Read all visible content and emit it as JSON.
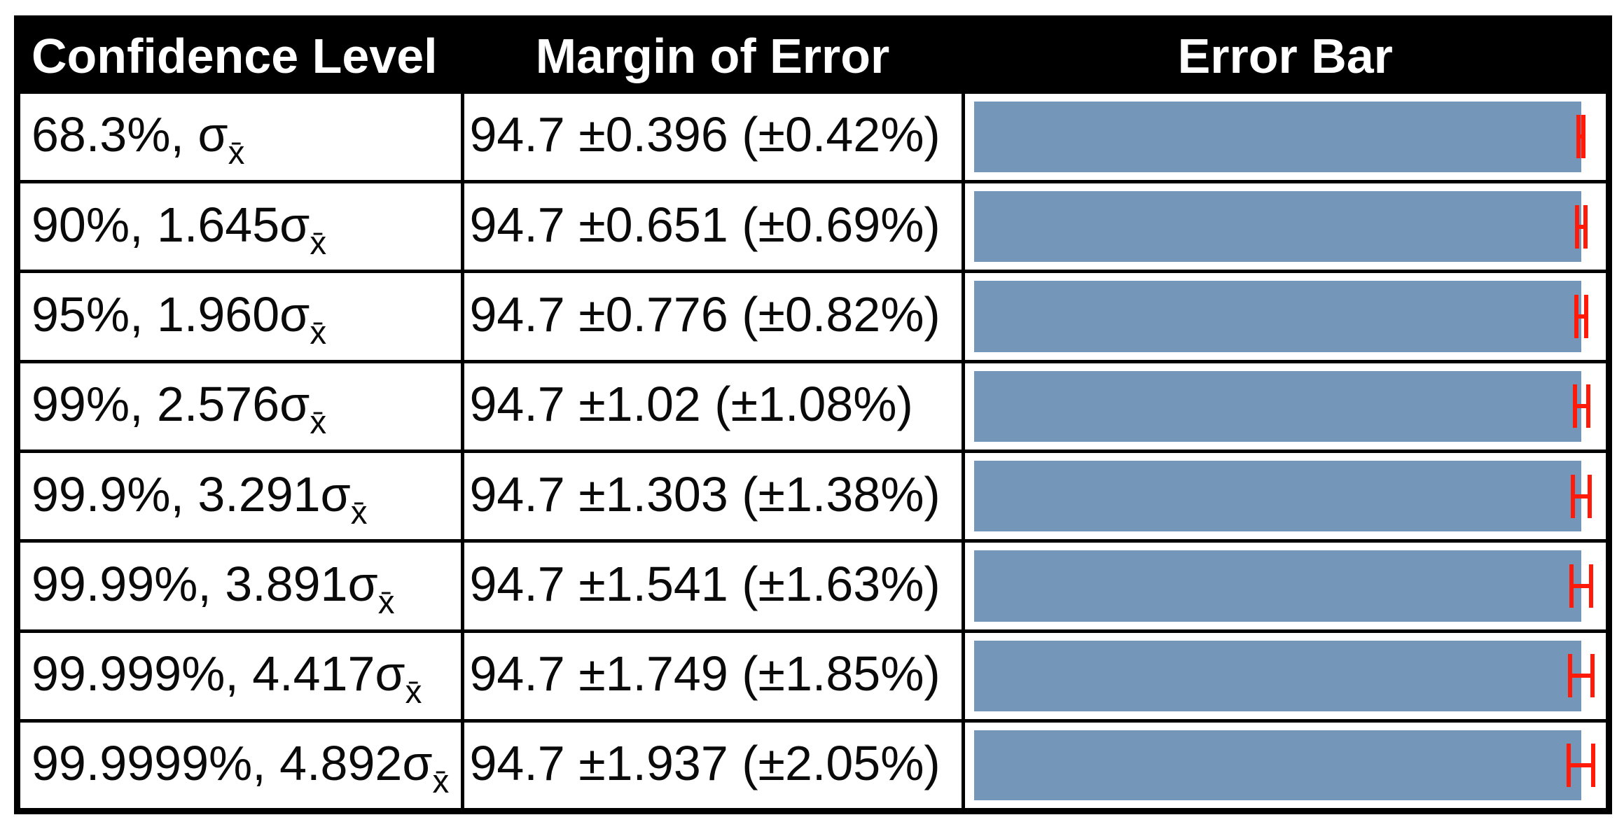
{
  "table": {
    "headers": [
      "Confidence Level",
      "Margin of Error",
      "Error Bar"
    ],
    "rows": [
      {
        "confidence": "68.3%, σ",
        "sigma_sub": "x̄",
        "margin": "94.7 ±0.396 (±0.42%)"
      },
      {
        "confidence": "90%, 1.645σ",
        "sigma_sub": "x̄",
        "margin": "94.7 ±0.651 (±0.69%)"
      },
      {
        "confidence": "95%, 1.960σ",
        "sigma_sub": "x̄",
        "margin": "94.7 ±0.776 (±0.82%)"
      },
      {
        "confidence": "99%, 2.576σ",
        "sigma_sub": "x̄",
        "margin": "94.7 ±1.02 (±1.08%)"
      },
      {
        "confidence": "99.9%, 3.291σ",
        "sigma_sub": "x̄",
        "margin": "94.7 ±1.303 (±1.38%)"
      },
      {
        "confidence": "99.99%, 3.891σ",
        "sigma_sub": "x̄",
        "margin": "94.7 ±1.541 (±1.63%)"
      },
      {
        "confidence": "99.999%, 4.417σ",
        "sigma_sub": "x̄",
        "margin": "94.7 ±1.749 (±1.85%)"
      },
      {
        "confidence": "99.9999%, 4.892σ",
        "sigma_sub": "x̄",
        "margin": "94.7 ±1.937 (±2.05%)"
      }
    ]
  },
  "chart_data": {
    "type": "bar",
    "orientation": "horizontal",
    "title": "Error Bar",
    "categories": [
      "68.3%, σx̄",
      "90%, 1.645σx̄",
      "95%, 1.960σx̄",
      "99%, 2.576σx̄",
      "99.9%, 3.291σx̄",
      "99.99%, 3.891σx̄",
      "99.999%, 4.417σx̄",
      "99.9999%, 4.892σx̄"
    ],
    "values": [
      94.7,
      94.7,
      94.7,
      94.7,
      94.7,
      94.7,
      94.7,
      94.7
    ],
    "error_margins": [
      0.396,
      0.651,
      0.776,
      1.02,
      1.303,
      1.541,
      1.749,
      1.937
    ],
    "error_margin_percent": [
      0.42,
      0.69,
      0.82,
      1.08,
      1.38,
      1.63,
      1.85,
      2.05
    ],
    "mean": 94.7,
    "xlim": [
      0,
      98.9
    ],
    "grid": false,
    "bar_color": "#7396b9",
    "error_bar_color": "#ff1a0a",
    "colors": {
      "header_bg": "#000000",
      "header_text": "#ffffff",
      "grid_lines": "#000000",
      "cell_bg": "#ffffff",
      "cell_text": "#0a0a0a"
    }
  }
}
